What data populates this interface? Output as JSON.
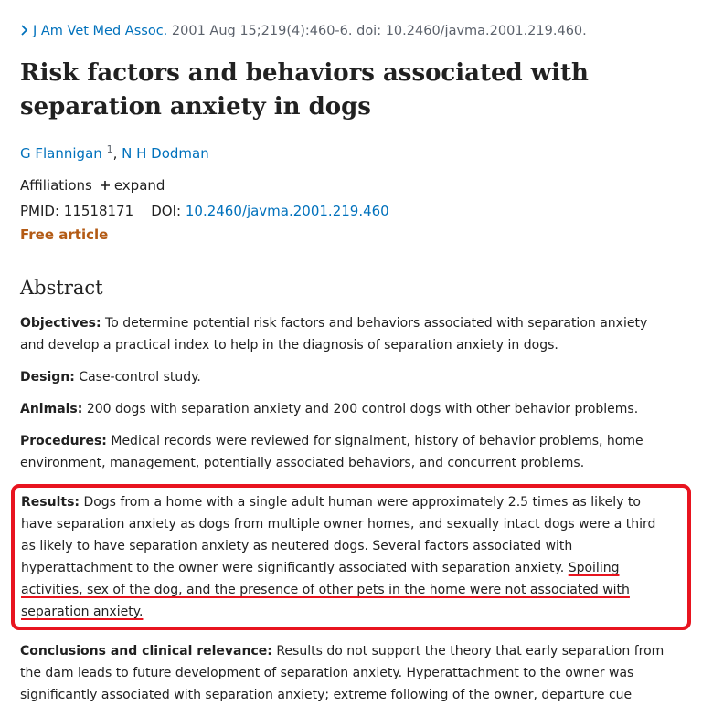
{
  "citation": {
    "journal": "J Am Vet Med Assoc.",
    "details": "2001 Aug 15;219(4):460-6. doi: 10.2460/javma.2001.219.460."
  },
  "title": "Risk factors and behaviors associated with separation anxiety in dogs",
  "authors": [
    {
      "name": "G Flannigan",
      "affiliation": "1"
    },
    {
      "name": "N H Dodman"
    }
  ],
  "author_separator": ",",
  "affiliations": {
    "label": "Affiliations",
    "toggle": "expand"
  },
  "ids": {
    "pmid_label": "PMID:",
    "pmid": "11518171",
    "doi_label": "DOI:",
    "doi": "10.2460/javma.2001.219.460"
  },
  "free_article": "Free article",
  "abstract": {
    "heading": "Abstract",
    "sections": [
      {
        "label": "Objectives:",
        "text": "To determine potential risk factors and behaviors associated with separation anxiety and develop a practical index to help in the diagnosis of separation anxiety in dogs."
      },
      {
        "label": "Design:",
        "text": "Case-control study."
      },
      {
        "label": "Animals:",
        "text": "200 dogs with separation anxiety and 200 control dogs with other behavior problems."
      },
      {
        "label": "Procedures:",
        "text": "Medical records were reviewed for signalment, history of behavior problems, home environment, management, potentially associated behaviors, and concurrent problems."
      },
      {
        "label": "Results:",
        "text": "Dogs from a home with a single adult human were approximately 2.5 times as likely to have separation anxiety as dogs from multiple owner homes, and sexually intact dogs were a third as likely to have separation anxiety as neutered dogs. Several factors associated with hyperattachment to the owner were significantly associated with separation anxiety.",
        "highlight": "Spoiling activities, sex of the dog, and the presence of other pets in the home were not associated with separation anxiety."
      },
      {
        "label": "Conclusions and clinical relevance:",
        "text": "Results do not support the theory that early separation from the dam leads to future development of separation anxiety. Hyperattachment to the owner was significantly associated with separation anxiety; extreme following of the owner, departure cue"
      }
    ]
  }
}
